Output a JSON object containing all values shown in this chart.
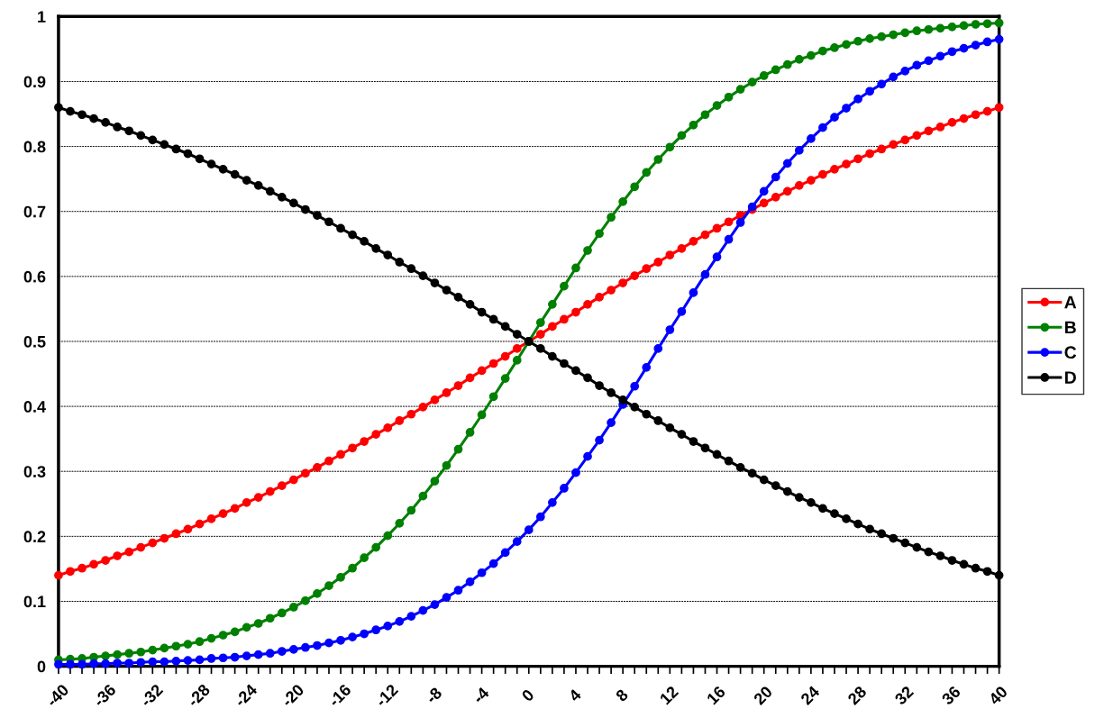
{
  "chart_data": {
    "type": "line",
    "x": [
      -40,
      -39,
      -38,
      -37,
      -36,
      -35,
      -34,
      -33,
      -32,
      -31,
      -30,
      -29,
      -28,
      -27,
      -26,
      -25,
      -24,
      -23,
      -22,
      -21,
      -20,
      -19,
      -18,
      -17,
      -16,
      -15,
      -14,
      -13,
      -12,
      -11,
      -10,
      -9,
      -8,
      -7,
      -6,
      -5,
      -4,
      -3,
      -2,
      -1,
      0,
      1,
      2,
      3,
      4,
      5,
      6,
      7,
      8,
      9,
      10,
      11,
      12,
      13,
      14,
      15,
      16,
      17,
      18,
      19,
      20,
      21,
      22,
      23,
      24,
      25,
      26,
      27,
      28,
      29,
      30,
      31,
      32,
      33,
      34,
      35,
      36,
      37,
      38,
      39,
      40
    ],
    "series": [
      {
        "name": "A",
        "color": "#ff0000",
        "values": [
          0.14,
          0.146,
          0.151,
          0.157,
          0.163,
          0.17,
          0.176,
          0.183,
          0.19,
          0.197,
          0.204,
          0.211,
          0.219,
          0.227,
          0.235,
          0.243,
          0.252,
          0.26,
          0.269,
          0.278,
          0.287,
          0.297,
          0.306,
          0.316,
          0.326,
          0.336,
          0.346,
          0.357,
          0.367,
          0.378,
          0.388,
          0.399,
          0.41,
          0.421,
          0.432,
          0.444,
          0.455,
          0.466,
          0.477,
          0.489,
          0.5,
          0.511,
          0.523,
          0.534,
          0.545,
          0.557,
          0.568,
          0.579,
          0.59,
          0.601,
          0.612,
          0.622,
          0.633,
          0.643,
          0.654,
          0.664,
          0.674,
          0.684,
          0.694,
          0.703,
          0.713,
          0.722,
          0.731,
          0.74,
          0.748,
          0.757,
          0.765,
          0.773,
          0.781,
          0.789,
          0.796,
          0.803,
          0.81,
          0.817,
          0.824,
          0.83,
          0.837,
          0.843,
          0.849,
          0.854,
          0.86
        ]
      },
      {
        "name": "B",
        "color": "#008000",
        "values": [
          0.01,
          0.011,
          0.012,
          0.014,
          0.016,
          0.018,
          0.02,
          0.022,
          0.025,
          0.028,
          0.031,
          0.034,
          0.038,
          0.043,
          0.048,
          0.053,
          0.06,
          0.066,
          0.074,
          0.082,
          0.091,
          0.101,
          0.112,
          0.124,
          0.137,
          0.151,
          0.167,
          0.183,
          0.201,
          0.22,
          0.24,
          0.262,
          0.285,
          0.309,
          0.334,
          0.36,
          0.387,
          0.415,
          0.443,
          0.471,
          0.5,
          0.529,
          0.557,
          0.585,
          0.613,
          0.64,
          0.666,
          0.691,
          0.715,
          0.738,
          0.76,
          0.78,
          0.799,
          0.817,
          0.833,
          0.849,
          0.863,
          0.876,
          0.888,
          0.899,
          0.909,
          0.918,
          0.926,
          0.934,
          0.94,
          0.947,
          0.952,
          0.957,
          0.962,
          0.966,
          0.969,
          0.972,
          0.975,
          0.978,
          0.98,
          0.982,
          0.984,
          0.986,
          0.988,
          0.989,
          0.99
        ]
      },
      {
        "name": "C",
        "color": "#0000ff",
        "values": [
          0.003,
          0.003,
          0.003,
          0.004,
          0.004,
          0.005,
          0.005,
          0.006,
          0.007,
          0.007,
          0.008,
          0.009,
          0.01,
          0.012,
          0.013,
          0.014,
          0.016,
          0.018,
          0.02,
          0.023,
          0.026,
          0.029,
          0.032,
          0.036,
          0.04,
          0.045,
          0.05,
          0.056,
          0.062,
          0.069,
          0.077,
          0.086,
          0.095,
          0.106,
          0.117,
          0.13,
          0.144,
          0.158,
          0.175,
          0.192,
          0.21,
          0.23,
          0.252,
          0.274,
          0.298,
          0.323,
          0.348,
          0.375,
          0.403,
          0.431,
          0.46,
          0.489,
          0.518,
          0.546,
          0.575,
          0.603,
          0.63,
          0.657,
          0.683,
          0.707,
          0.731,
          0.753,
          0.774,
          0.794,
          0.812,
          0.829,
          0.845,
          0.859,
          0.873,
          0.885,
          0.896,
          0.907,
          0.916,
          0.925,
          0.932,
          0.939,
          0.946,
          0.951,
          0.956,
          0.961,
          0.965
        ]
      },
      {
        "name": "D",
        "color": "#000000",
        "values": [
          0.86,
          0.854,
          0.849,
          0.843,
          0.837,
          0.83,
          0.824,
          0.817,
          0.81,
          0.803,
          0.796,
          0.789,
          0.781,
          0.773,
          0.765,
          0.757,
          0.748,
          0.74,
          0.731,
          0.722,
          0.713,
          0.703,
          0.694,
          0.684,
          0.674,
          0.664,
          0.654,
          0.643,
          0.633,
          0.622,
          0.612,
          0.601,
          0.59,
          0.579,
          0.568,
          0.557,
          0.545,
          0.534,
          0.523,
          0.511,
          0.5,
          0.489,
          0.477,
          0.466,
          0.455,
          0.444,
          0.432,
          0.421,
          0.41,
          0.399,
          0.388,
          0.378,
          0.367,
          0.357,
          0.346,
          0.336,
          0.326,
          0.316,
          0.306,
          0.297,
          0.287,
          0.278,
          0.269,
          0.26,
          0.252,
          0.243,
          0.235,
          0.227,
          0.219,
          0.211,
          0.204,
          0.197,
          0.19,
          0.183,
          0.176,
          0.17,
          0.163,
          0.157,
          0.151,
          0.146,
          0.14
        ]
      }
    ],
    "xlim": [
      -40,
      40
    ],
    "xticks": [
      -40,
      {
        "value": -39,
        "label": null
      },
      {
        "value": -38,
        "label": null
      },
      {
        "value": -37,
        "label": null
      },
      -36,
      {
        "value": -35,
        "label": null
      },
      {
        "value": -34,
        "label": null
      },
      {
        "value": -33,
        "label": null
      },
      -32,
      {
        "value": -31,
        "label": null
      },
      {
        "value": -30,
        "label": null
      },
      {
        "value": -29,
        "label": null
      },
      -28,
      {
        "value": -27,
        "label": null
      },
      {
        "value": -26,
        "label": null
      },
      {
        "value": -25,
        "label": null
      },
      -24,
      {
        "value": -23,
        "label": null
      },
      {
        "value": -22,
        "label": null
      },
      {
        "value": -21,
        "label": null
      },
      -20,
      {
        "value": -19,
        "label": null
      },
      {
        "value": -18,
        "label": null
      },
      {
        "value": -17,
        "label": null
      },
      -16,
      {
        "value": -15,
        "label": null
      },
      {
        "value": -14,
        "label": null
      },
      {
        "value": -13,
        "label": null
      },
      -12,
      {
        "value": -11,
        "label": null
      },
      {
        "value": -10,
        "label": null
      },
      {
        "value": -9,
        "label": null
      },
      -8,
      {
        "value": -7,
        "label": null
      },
      {
        "value": -6,
        "label": null
      },
      {
        "value": -5,
        "label": null
      },
      -4,
      {
        "value": -3,
        "label": null
      },
      {
        "value": -2,
        "label": null
      },
      {
        "value": -1,
        "label": null
      },
      0,
      {
        "value": 1,
        "label": null
      },
      {
        "value": 2,
        "label": null
      },
      {
        "value": 3,
        "label": null
      },
      4,
      {
        "value": 5,
        "label": null
      },
      {
        "value": 6,
        "label": null
      },
      {
        "value": 7,
        "label": null
      },
      8,
      {
        "value": 9,
        "label": null
      },
      {
        "value": 10,
        "label": null
      },
      {
        "value": 11,
        "label": null
      },
      12,
      {
        "value": 13,
        "label": null
      },
      {
        "value": 14,
        "label": null
      },
      {
        "value": 15,
        "label": null
      },
      16,
      {
        "value": 17,
        "label": null
      },
      {
        "value": 18,
        "label": null
      },
      {
        "value": 19,
        "label": null
      },
      20,
      {
        "value": 21,
        "label": null
      },
      {
        "value": 22,
        "label": null
      },
      {
        "value": 23,
        "label": null
      },
      24,
      {
        "value": 25,
        "label": null
      },
      {
        "value": 26,
        "label": null
      },
      {
        "value": 27,
        "label": null
      },
      28,
      {
        "value": 29,
        "label": null
      },
      {
        "value": 30,
        "label": null
      },
      {
        "value": 31,
        "label": null
      },
      32,
      {
        "value": 33,
        "label": null
      },
      {
        "value": 34,
        "label": null
      },
      {
        "value": 35,
        "label": null
      },
      36,
      {
        "value": 37,
        "label": null
      },
      {
        "value": 38,
        "label": null
      },
      {
        "value": 39,
        "label": null
      },
      40
    ],
    "ylim": [
      0,
      1
    ],
    "yticks": [
      0,
      0.1,
      0.2,
      0.3,
      0.4,
      0.5,
      0.6,
      0.7,
      0.8,
      0.9,
      1
    ],
    "grid": "y",
    "legend": "right",
    "marker": "circle",
    "line_style": "solid"
  }
}
